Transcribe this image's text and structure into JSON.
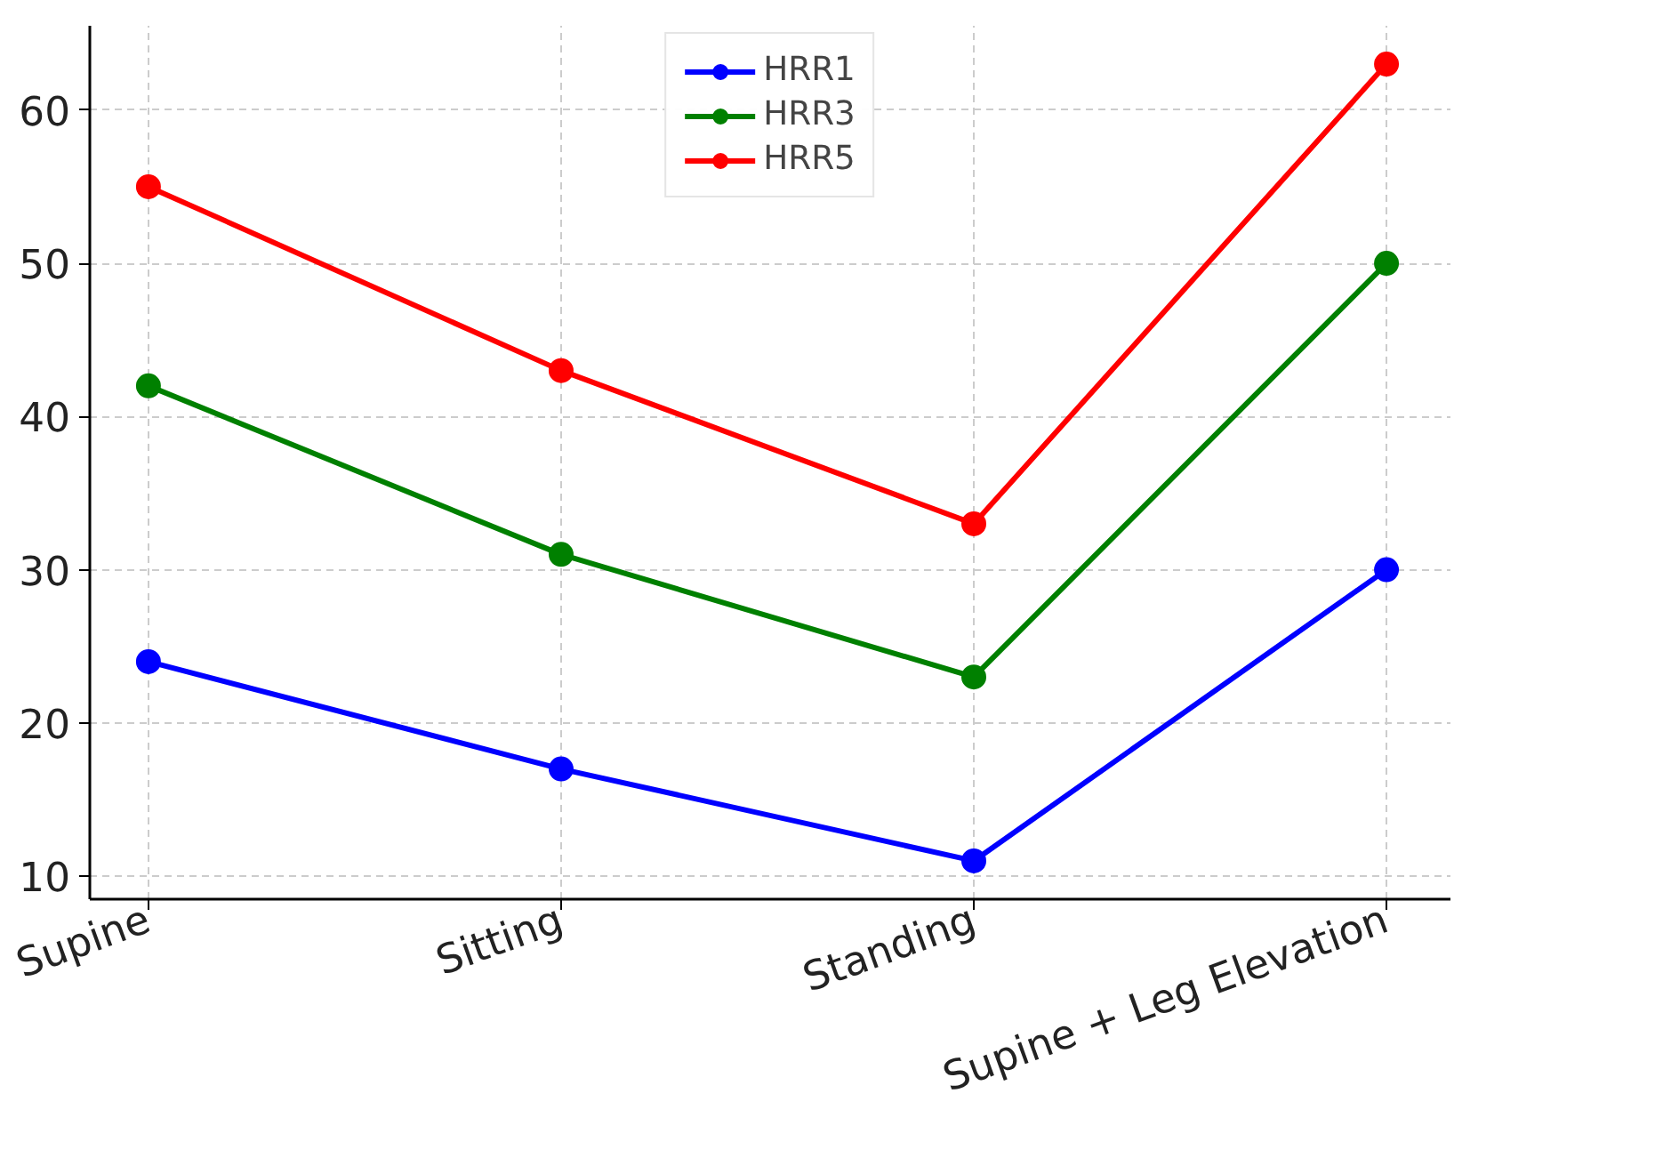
{
  "chart_data": {
    "type": "line",
    "categories": [
      "Supine",
      "Sitting",
      "Standing",
      "Supine + Leg Elevation"
    ],
    "series": [
      {
        "name": "HRR1",
        "color": "#0000ff",
        "values": [
          24,
          17,
          11,
          30
        ]
      },
      {
        "name": "HRR3",
        "color": "#008000",
        "values": [
          42,
          31,
          23,
          50
        ]
      },
      {
        "name": "HRR5",
        "color": "#ff0000",
        "values": [
          55,
          43,
          33,
          63
        ]
      }
    ],
    "ylim": [
      8.5,
      65.5
    ],
    "yticks": [
      10,
      20,
      30,
      40,
      50,
      60
    ],
    "grid": true,
    "legend": "top",
    "marker": "circle",
    "line_style": "solid"
  }
}
